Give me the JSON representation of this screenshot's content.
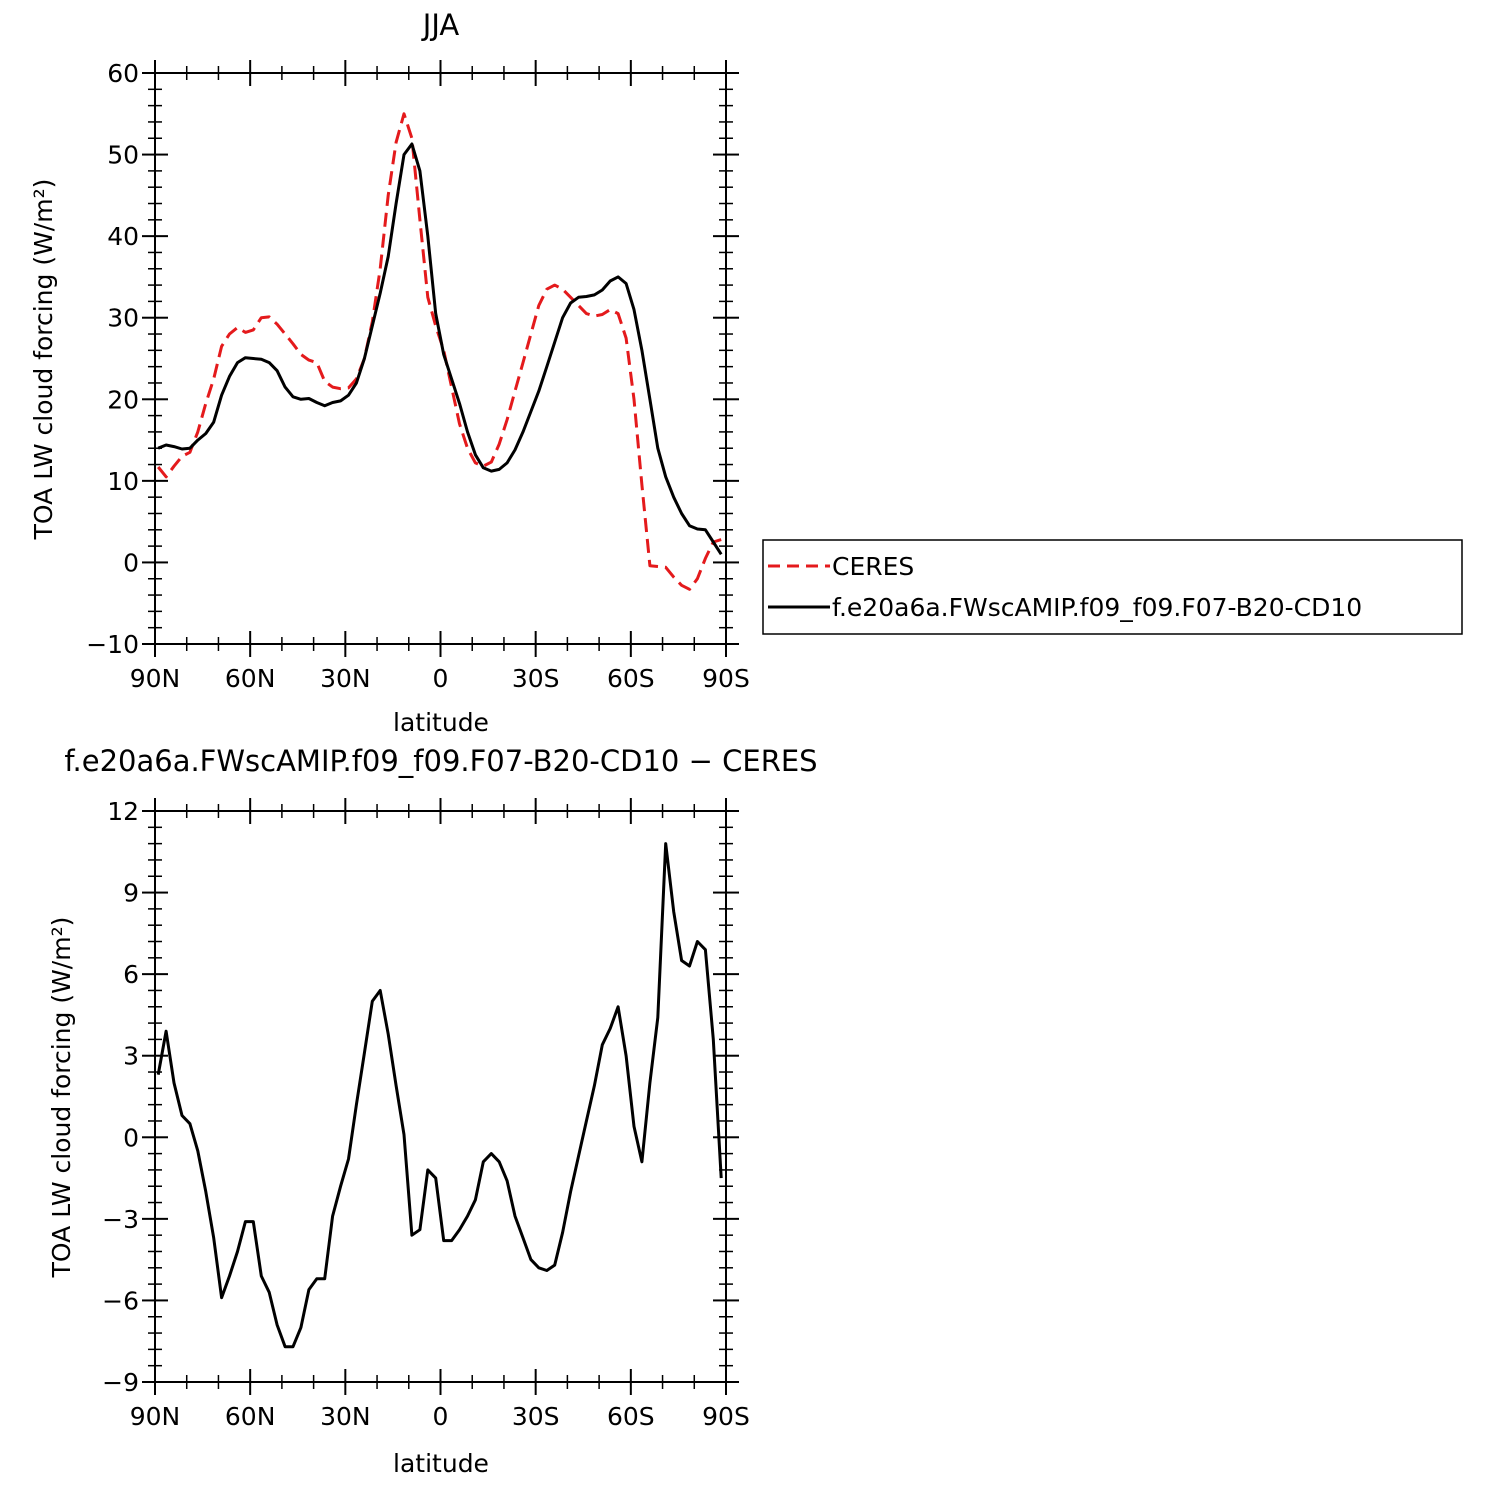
{
  "chart_data": [
    {
      "type": "line",
      "title": "JJA",
      "xlabel": "latitude",
      "ylabel": "TOA LW cloud forcing (W/m²)",
      "ylim": [
        -10,
        60
      ],
      "yticks": [
        -10,
        0,
        10,
        20,
        30,
        40,
        50,
        60
      ],
      "xlim": [
        90,
        -90
      ],
      "xticks": [
        90,
        60,
        30,
        0,
        -30,
        -60,
        -90
      ],
      "xticklabels": [
        "90N",
        "60N",
        "30N",
        "0",
        "30S",
        "60S",
        "90S"
      ],
      "legend_position": "right",
      "series": [
        {
          "name": "CERES",
          "color": "#e41a1c",
          "style": "dashed",
          "x": [
            89,
            86.5,
            84,
            81.5,
            79,
            76.5,
            74,
            71.5,
            69,
            66.5,
            64,
            61.5,
            59,
            56.5,
            54,
            51.5,
            49,
            46.5,
            44,
            41.5,
            39,
            36.5,
            34,
            31.5,
            29,
            26.5,
            24,
            21.5,
            19,
            16.5,
            14,
            11.5,
            9,
            6.5,
            4,
            1.5,
            -1,
            -3.5,
            -6,
            -8.5,
            -11,
            -13.5,
            -16,
            -18.5,
            -21,
            -23.5,
            -26,
            -28.5,
            -31,
            -33.5,
            -36,
            -38.5,
            -41,
            -43.5,
            -46,
            -48.5,
            -51,
            -53.5,
            -56,
            -58.5,
            -61,
            -63.5,
            -66,
            -68.5,
            -71,
            -73.5,
            -76,
            -78.5,
            -81,
            -83.5,
            -86,
            -88.5
          ],
          "y": [
            11.7,
            10.5,
            11.8,
            13.0,
            13.5,
            16.0,
            19.5,
            22.5,
            26.5,
            28.0,
            28.8,
            28.2,
            28.5,
            30.0,
            30.1,
            29.2,
            28.0,
            26.8,
            25.5,
            24.8,
            24.5,
            22.2,
            21.5,
            21.3,
            21.4,
            22.5,
            25.0,
            29.5,
            36.0,
            45.0,
            51.5,
            55.0,
            52.0,
            42.0,
            32.5,
            29.0,
            26.0,
            21.5,
            17.0,
            14.0,
            12.2,
            11.8,
            12.3,
            14.5,
            17.5,
            21.0,
            24.5,
            28.0,
            31.5,
            33.5,
            34.0,
            33.5,
            32.5,
            31.5,
            30.5,
            30.2,
            30.4,
            31.0,
            30.5,
            27.5,
            20.0,
            9.5,
            -0.4,
            -0.5,
            -0.6,
            -1.8,
            -2.8,
            -3.3,
            -2.0,
            0.5,
            2.5,
            2.8
          ]
        },
        {
          "name": "f.e20a6a.FWscAMIP.f09_f09.F07-B20-CD10",
          "color": "#000000",
          "style": "solid",
          "x": [
            89,
            86.5,
            84,
            81.5,
            79,
            76.5,
            74,
            71.5,
            69,
            66.5,
            64,
            61.5,
            59,
            56.5,
            54,
            51.5,
            49,
            46.5,
            44,
            41.5,
            39,
            36.5,
            34,
            31.5,
            29,
            26.5,
            24,
            21.5,
            19,
            16.5,
            14,
            11.5,
            9,
            6.5,
            4,
            1.5,
            -1,
            -3.5,
            -6,
            -8.5,
            -11,
            -13.5,
            -16,
            -18.5,
            -21,
            -23.5,
            -26,
            -28.5,
            -31,
            -33.5,
            -36,
            -38.5,
            -41,
            -43.5,
            -46,
            -48.5,
            -51,
            -53.5,
            -56,
            -58.5,
            -61,
            -63.5,
            -66,
            -68.5,
            -71,
            -73.5,
            -76,
            -78.5,
            -81,
            -83.5,
            -86,
            -88.5
          ],
          "y": [
            14.0,
            14.4,
            14.2,
            13.9,
            14.0,
            15.0,
            15.8,
            17.2,
            20.5,
            22.8,
            24.5,
            25.1,
            25.0,
            24.9,
            24.5,
            23.5,
            21.5,
            20.3,
            20.0,
            20.1,
            19.6,
            19.2,
            19.6,
            19.8,
            20.5,
            22.0,
            25.0,
            29.0,
            33.0,
            37.5,
            44.0,
            50.0,
            51.3,
            48.0,
            40.0,
            30.5,
            25.5,
            22.5,
            19.5,
            16.0,
            13.2,
            11.6,
            11.2,
            11.4,
            12.2,
            13.8,
            16.0,
            18.5,
            21.0,
            24.0,
            27.0,
            30.0,
            31.8,
            32.5,
            32.6,
            32.8,
            33.4,
            34.5,
            35.0,
            34.2,
            31.0,
            26.0,
            20.0,
            14.0,
            10.5,
            8.0,
            6.0,
            4.5,
            4.1,
            4.0,
            2.5,
            1.0
          ]
        }
      ]
    },
    {
      "type": "line",
      "title": "f.e20a6a.FWscAMIP.f09_f09.F07-B20-CD10 − CERES",
      "xlabel": "latitude",
      "ylabel": "TOA LW cloud forcing (W/m²)",
      "ylim": [
        -9,
        12
      ],
      "yticks": [
        -9,
        -6,
        -3,
        0,
        3,
        6,
        9,
        12
      ],
      "xlim": [
        90,
        -90
      ],
      "xticks": [
        90,
        60,
        30,
        0,
        -30,
        -60,
        -90
      ],
      "xticklabels": [
        "90N",
        "60N",
        "30N",
        "0",
        "30S",
        "60S",
        "90S"
      ],
      "series": [
        {
          "color": "#000000",
          "style": "solid",
          "x": [
            89,
            86.5,
            84,
            81.5,
            79,
            76.5,
            74,
            71.5,
            69,
            66.5,
            64,
            61.5,
            59,
            56.5,
            54,
            51.5,
            49,
            46.5,
            44,
            41.5,
            39,
            36.5,
            34,
            31.5,
            29,
            26.5,
            24,
            21.5,
            19,
            16.5,
            14,
            11.5,
            9,
            6.5,
            4,
            1.5,
            -1,
            -3.5,
            -6,
            -8.5,
            -11,
            -13.5,
            -16,
            -18.5,
            -21,
            -23.5,
            -26,
            -28.5,
            -31,
            -33.5,
            -36,
            -38.5,
            -41,
            -43.5,
            -46,
            -48.5,
            -51,
            -53.5,
            -56,
            -58.5,
            -61,
            -63.5,
            -66,
            -68.5,
            -71,
            -73.5,
            -76,
            -78.5,
            -81,
            -83.5,
            -86,
            -88.5
          ],
          "y": [
            2.3,
            3.9,
            2.0,
            0.8,
            0.5,
            -0.5,
            -2.0,
            -3.7,
            -5.9,
            -5.1,
            -4.2,
            -3.1,
            -3.1,
            -5.1,
            -5.7,
            -6.9,
            -7.7,
            -7.7,
            -7.0,
            -5.6,
            -5.2,
            -5.2,
            -2.9,
            -1.8,
            -0.8,
            1.2,
            3.1,
            5.0,
            5.4,
            3.8,
            1.9,
            0.1,
            -3.6,
            -3.4,
            -1.2,
            -1.5,
            -3.8,
            -3.8,
            -3.4,
            -2.9,
            -2.3,
            -0.9,
            -0.6,
            -0.9,
            -1.6,
            -2.9,
            -3.7,
            -4.5,
            -4.8,
            -4.9,
            -4.7,
            -3.5,
            -2.0,
            -0.7,
            0.6,
            1.9,
            3.4,
            4.0,
            4.8,
            3.0,
            0.4,
            -0.9,
            2.0,
            4.4,
            10.8,
            8.3,
            6.5,
            6.3,
            7.2,
            6.9,
            3.6,
            -1.5
          ]
        }
      ]
    }
  ]
}
